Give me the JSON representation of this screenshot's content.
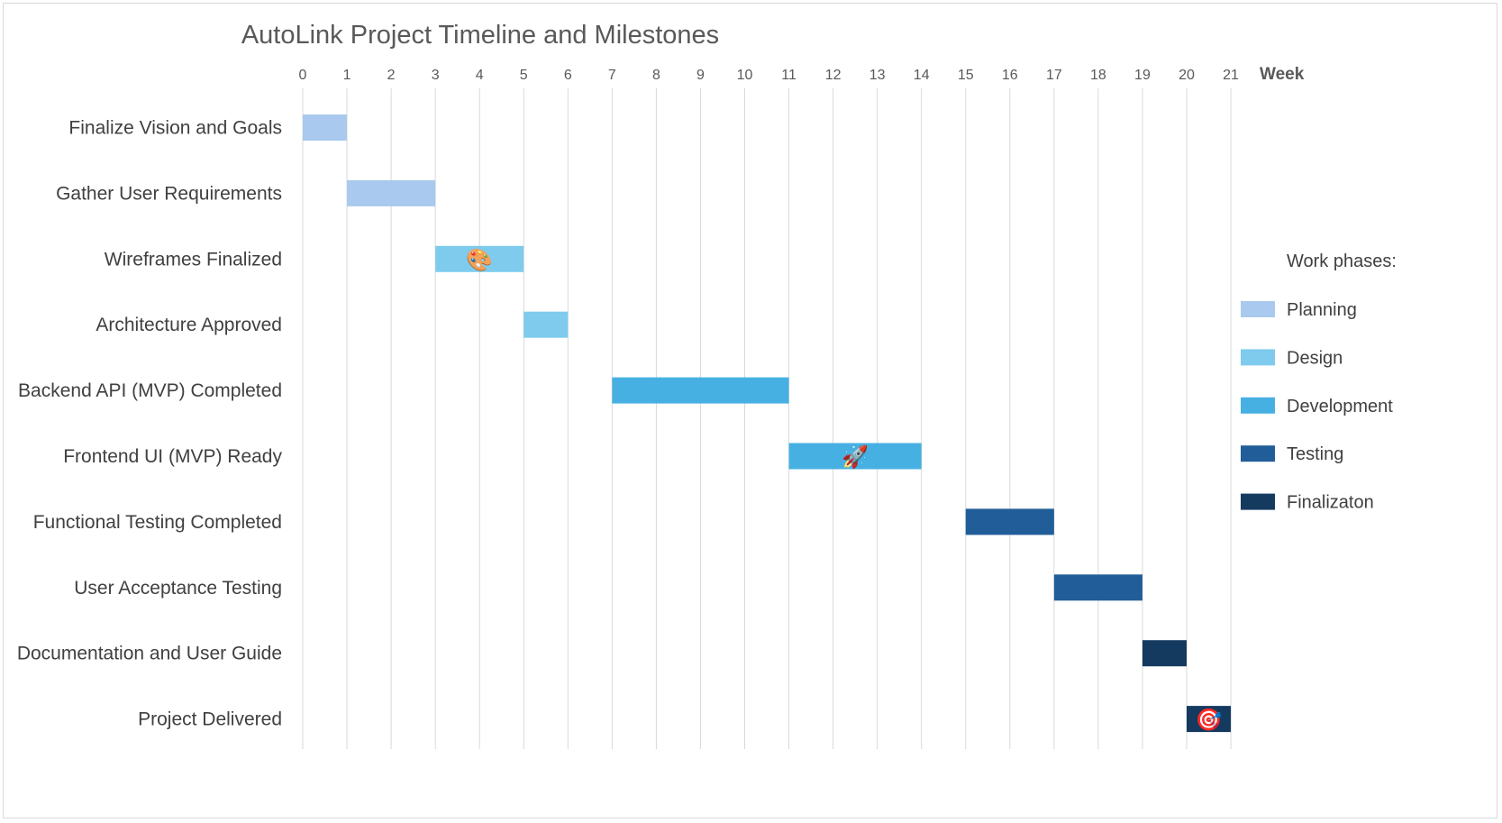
{
  "chart_data": {
    "type": "gantt",
    "title": "AutoLink Project Timeline and Milestones",
    "x_axis": {
      "label": "Week",
      "position": "top",
      "min": 0,
      "max": 21,
      "ticks": [
        0,
        1,
        2,
        3,
        4,
        5,
        6,
        7,
        8,
        9,
        10,
        11,
        12,
        13,
        14,
        15,
        16,
        17,
        18,
        19,
        20,
        21
      ],
      "grid": true
    },
    "phases": [
      {
        "name": "Planning",
        "color": "#a9c9ee"
      },
      {
        "name": "Design",
        "color": "#7ecbee"
      },
      {
        "name": "Development",
        "color": "#47b0e2"
      },
      {
        "name": "Testing",
        "color": "#215e99"
      },
      {
        "name": "Finalizaton",
        "color": "#153a60"
      }
    ],
    "legend": {
      "title": "Work phases:",
      "placement": "right"
    },
    "tasks": [
      {
        "label": "Finalize Vision and Goals",
        "start": 0,
        "end": 1,
        "phase": "Planning",
        "icon": ""
      },
      {
        "label": "Gather User Requirements",
        "start": 1,
        "end": 3,
        "phase": "Planning",
        "icon": ""
      },
      {
        "label": "Wireframes Finalized",
        "start": 3,
        "end": 5,
        "phase": "Design",
        "icon": "palette-icon"
      },
      {
        "label": "Architecture Approved",
        "start": 5,
        "end": 6,
        "phase": "Design",
        "icon": ""
      },
      {
        "label": "Backend API (MVP) Completed",
        "start": 7,
        "end": 11,
        "phase": "Development",
        "icon": ""
      },
      {
        "label": "Frontend UI (MVP) Ready",
        "start": 11,
        "end": 14,
        "phase": "Development",
        "icon": "rocket-icon"
      },
      {
        "label": "Functional Testing Completed",
        "start": 15,
        "end": 17,
        "phase": "Testing",
        "icon": ""
      },
      {
        "label": "User Acceptance Testing",
        "start": 17,
        "end": 19,
        "phase": "Testing",
        "icon": ""
      },
      {
        "label": "Documentation and User Guide",
        "start": 19,
        "end": 20,
        "phase": "Finalizaton",
        "icon": ""
      },
      {
        "label": "Project Delivered",
        "start": 20,
        "end": 21,
        "phase": "Finalizaton",
        "icon": "target-icon"
      }
    ]
  }
}
